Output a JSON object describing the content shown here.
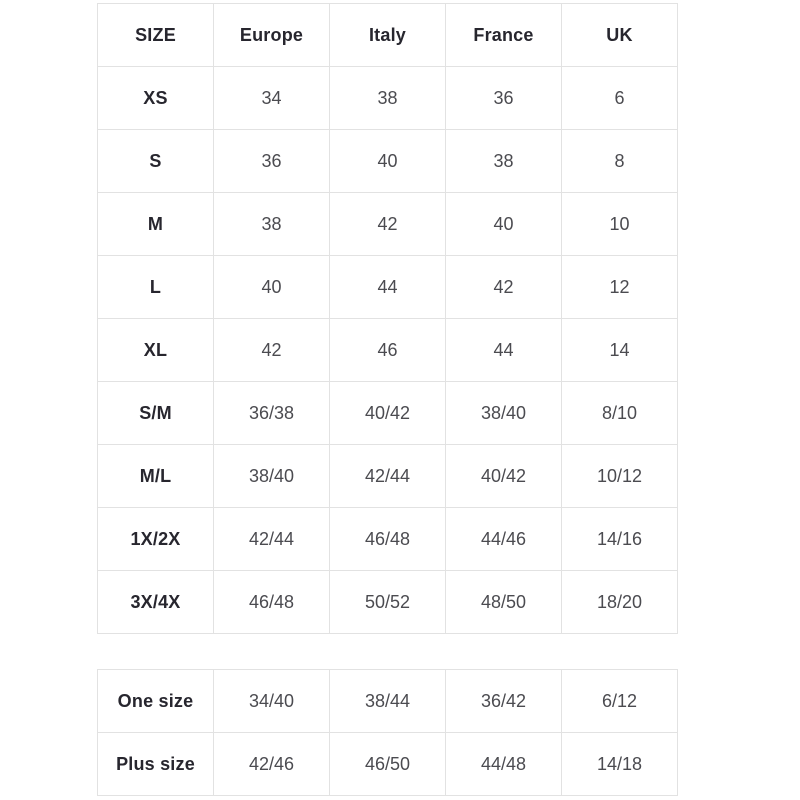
{
  "colors": {
    "border": "#e2e2e2",
    "header_text": "#27262e",
    "body_text": "#4b4b50",
    "background": "#ffffff"
  },
  "main_table": {
    "headers": [
      "SIZE",
      "Europe",
      "Italy",
      "France",
      "UK"
    ],
    "rows": [
      {
        "label": "XS",
        "values": [
          "34",
          "38",
          "36",
          "6"
        ]
      },
      {
        "label": "S",
        "values": [
          "36",
          "40",
          "38",
          "8"
        ]
      },
      {
        "label": "M",
        "values": [
          "38",
          "42",
          "40",
          "10"
        ]
      },
      {
        "label": "L",
        "values": [
          "40",
          "44",
          "42",
          "12"
        ]
      },
      {
        "label": "XL",
        "values": [
          "42",
          "46",
          "44",
          "14"
        ]
      },
      {
        "label": "S/M",
        "values": [
          "36/38",
          "40/42",
          "38/40",
          "8/10"
        ]
      },
      {
        "label": "M/L",
        "values": [
          "38/40",
          "42/44",
          "40/42",
          "10/12"
        ]
      },
      {
        "label": "1X/2X",
        "values": [
          "42/44",
          "46/48",
          "44/46",
          "14/16"
        ]
      },
      {
        "label": "3X/4X",
        "values": [
          "46/48",
          "50/52",
          "48/50",
          "18/20"
        ]
      }
    ]
  },
  "special_table": {
    "rows": [
      {
        "label": "One size",
        "values": [
          "34/40",
          "38/44",
          "36/42",
          "6/12"
        ]
      },
      {
        "label": "Plus size",
        "values": [
          "42/46",
          "46/50",
          "44/48",
          "14/18"
        ]
      }
    ]
  }
}
